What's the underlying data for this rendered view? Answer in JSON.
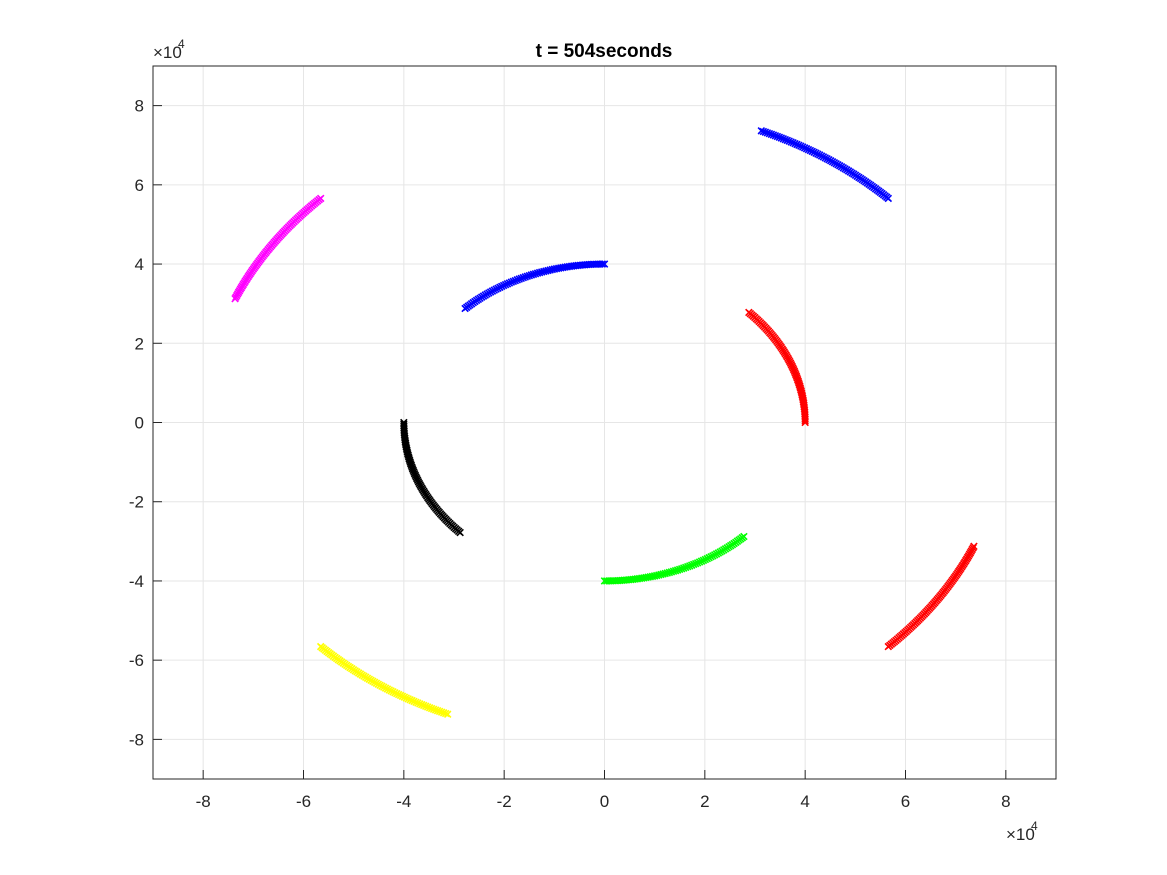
{
  "chart_data": {
    "type": "scatter",
    "title": "t = 504seconds",
    "xlabel": "",
    "ylabel": "",
    "xlim": [
      -90000,
      90000
    ],
    "ylim": [
      -90000,
      90000
    ],
    "grid": true,
    "x_ticks": [
      -80000,
      -60000,
      -40000,
      -20000,
      0,
      20000,
      40000,
      60000,
      80000
    ],
    "x_tick_labels": [
      "-8",
      "-6",
      "-4",
      "-2",
      "0",
      "2",
      "4",
      "6",
      "8"
    ],
    "y_ticks": [
      -80000,
      -60000,
      -40000,
      -20000,
      0,
      20000,
      40000,
      60000,
      80000
    ],
    "y_tick_labels": [
      "-8",
      "-6",
      "-4",
      "-2",
      "0",
      "2",
      "4",
      "6",
      "8"
    ],
    "x_exponent": {
      "base": "×10",
      "power": "4"
    },
    "y_exponent": {
      "base": "×10",
      "power": "4"
    },
    "marker": "x",
    "series": [
      {
        "color": "#ff00ff",
        "arc": {
          "r": 80000,
          "start_deg": 135,
          "end_deg": 157
        }
      },
      {
        "color": "#0000ff",
        "arc": {
          "r": 80000,
          "start_deg": 45,
          "end_deg": 67
        }
      },
      {
        "color": "#0000ff",
        "arc": {
          "r": 40000,
          "start_deg": 90,
          "end_deg": 134
        }
      },
      {
        "color": "#ff0000",
        "arc": {
          "r": 40000,
          "start_deg": 0,
          "end_deg": 44
        }
      },
      {
        "color": "#000000",
        "arc": {
          "r": 40000,
          "start_deg": 180,
          "end_deg": 224
        }
      },
      {
        "color": "#00ff00",
        "arc": {
          "r": 40000,
          "start_deg": 270,
          "end_deg": 314
        }
      },
      {
        "color": "#ff0000",
        "arc": {
          "r": 80000,
          "start_deg": 315,
          "end_deg": 337
        }
      },
      {
        "color": "#ffff00",
        "arc": {
          "r": 80000,
          "start_deg": 225,
          "end_deg": 247
        }
      }
    ]
  }
}
